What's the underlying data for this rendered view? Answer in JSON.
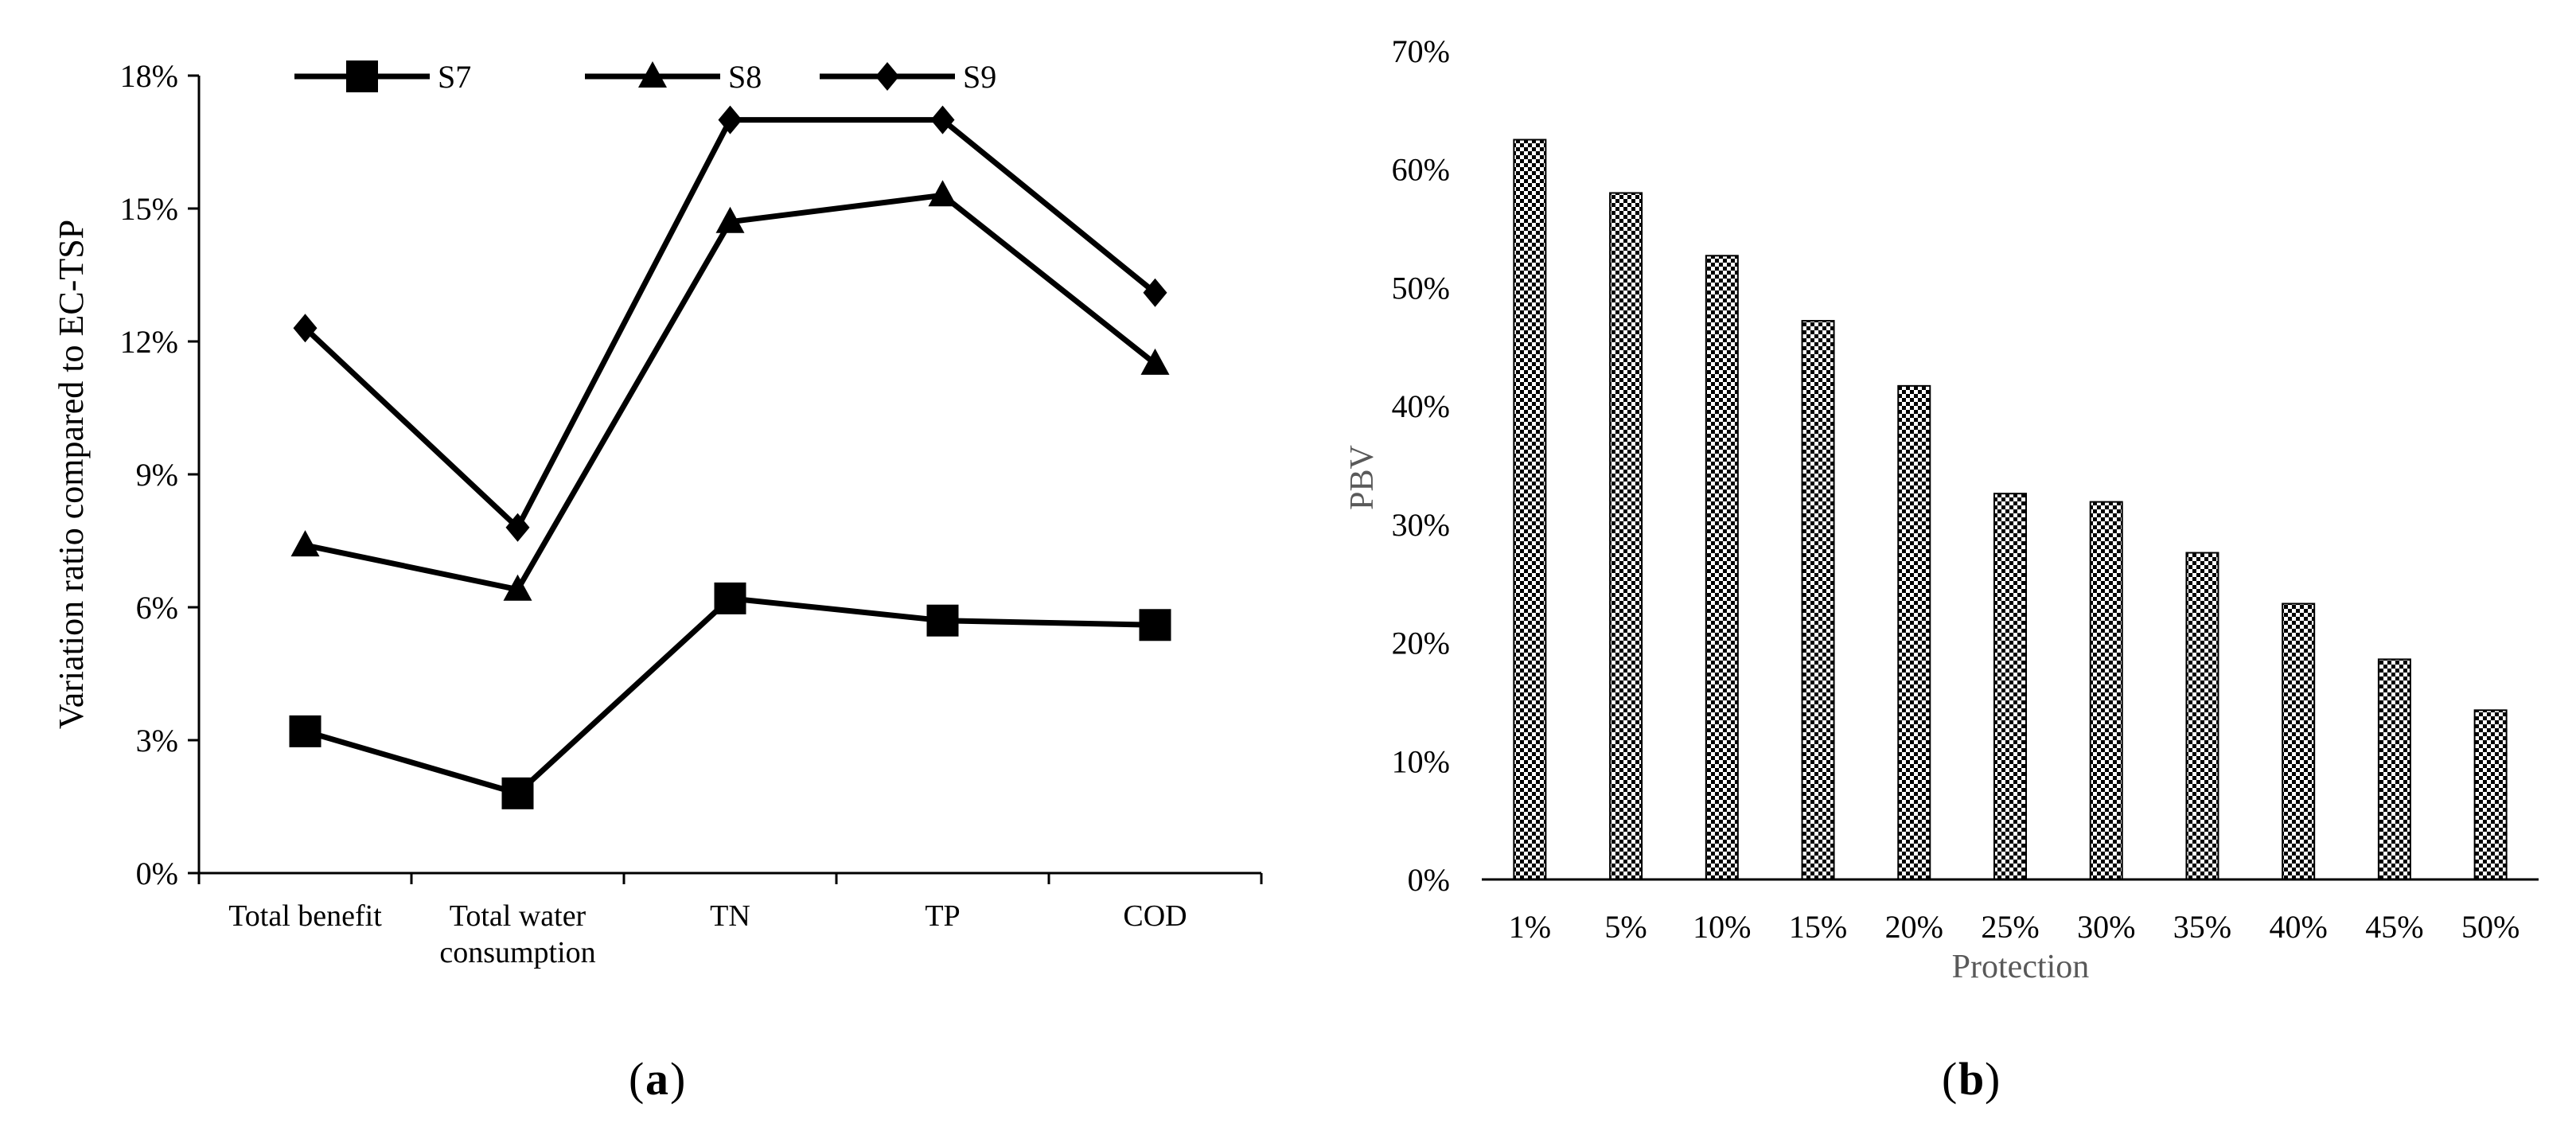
{
  "colors": {
    "ink": "#000000",
    "muted": "#595959",
    "background": "#ffffff"
  },
  "panel_a": {
    "caption": "a"
  },
  "panel_b": {
    "caption": "b"
  },
  "chart_data": [
    {
      "type": "line",
      "title": "",
      "categories": [
        "Total benefit",
        "Total water consumption",
        "TN",
        "TP",
        "COD"
      ],
      "category_lines": [
        [
          "Total benefit"
        ],
        [
          "Total water",
          "consumption"
        ],
        [
          "TN"
        ],
        [
          "TP"
        ],
        [
          "COD"
        ]
      ],
      "ylabel": "Variation ratio compared to EC-TSP",
      "xlabel": "",
      "ylim": [
        0,
        18
      ],
      "yticks": [
        0,
        3,
        6,
        9,
        12,
        15,
        18
      ],
      "ytick_labels": [
        "0%",
        "3%",
        "6%",
        "9%",
        "12%",
        "15%",
        "18%"
      ],
      "grid": false,
      "legend": "top",
      "series": [
        {
          "name": "S7",
          "marker": "square",
          "values": [
            3.2,
            1.8,
            6.2,
            5.7,
            5.6
          ]
        },
        {
          "name": "S8",
          "marker": "triangle",
          "values": [
            7.4,
            6.4,
            14.7,
            15.3,
            11.5
          ]
        },
        {
          "name": "S9",
          "marker": "diamond",
          "values": [
            12.3,
            7.8,
            17.0,
            17.0,
            13.1
          ]
        }
      ]
    },
    {
      "type": "bar",
      "title": "",
      "categories": [
        "1%",
        "5%",
        "10%",
        "15%",
        "20%",
        "25%",
        "30%",
        "35%",
        "40%",
        "45%",
        "50%"
      ],
      "values": [
        62.5,
        58.0,
        52.7,
        47.2,
        41.7,
        32.6,
        31.9,
        27.6,
        23.3,
        18.6,
        14.3
      ],
      "ylabel": "PBV",
      "xlabel": "Protection",
      "ylim": [
        0,
        70
      ],
      "yticks": [
        0,
        10,
        20,
        30,
        40,
        50,
        60,
        70
      ],
      "ytick_labels": [
        "0%",
        "10%",
        "20%",
        "30%",
        "40%",
        "50%",
        "60%",
        "70%"
      ],
      "grid": false,
      "fill": "checkerboard"
    }
  ]
}
